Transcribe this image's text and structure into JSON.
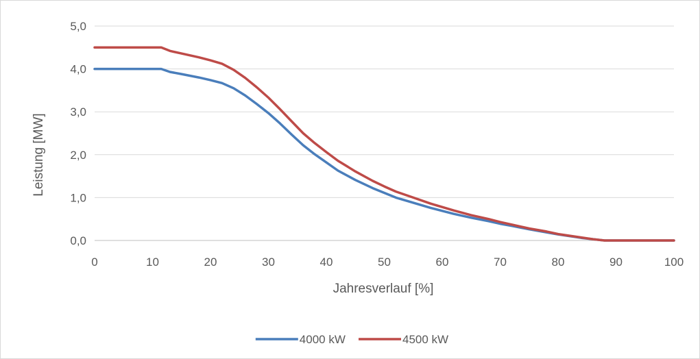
{
  "chart_data": {
    "type": "line",
    "title": "",
    "xlabel": "Jahresverlauf [%]",
    "ylabel": "Leistung [MW]",
    "xlim": [
      0,
      100
    ],
    "ylim": [
      0,
      5
    ],
    "x_ticks": [
      0,
      10,
      20,
      30,
      40,
      50,
      60,
      70,
      80,
      90,
      100
    ],
    "x_tick_labels": [
      "0",
      "10",
      "20",
      "30",
      "40",
      "50",
      "60",
      "70",
      "80",
      "90",
      "100"
    ],
    "y_ticks": [
      0,
      1,
      2,
      3,
      4,
      5
    ],
    "y_tick_labels": [
      "0,0",
      "1,0",
      "2,0",
      "3,0",
      "4,0",
      "5,0"
    ],
    "grid": "horizontal",
    "legend_position": "bottom",
    "series": [
      {
        "name": "4000 kW",
        "color": "#4a7ebb",
        "x": [
          0,
          5,
          10,
          11.5,
          13,
          15,
          18,
          20,
          22,
          24,
          26,
          28,
          30,
          32,
          34,
          36,
          38,
          40,
          42,
          45,
          48,
          50,
          52,
          55,
          58,
          60,
          62,
          65,
          68,
          70,
          72,
          75,
          78,
          80,
          82,
          84,
          86,
          88,
          90,
          95,
          100
        ],
        "y": [
          4.0,
          4.0,
          4.0,
          4.0,
          3.93,
          3.88,
          3.8,
          3.74,
          3.67,
          3.55,
          3.38,
          3.18,
          2.97,
          2.73,
          2.47,
          2.22,
          2.01,
          1.82,
          1.63,
          1.41,
          1.22,
          1.11,
          1.0,
          0.88,
          0.76,
          0.69,
          0.62,
          0.53,
          0.45,
          0.39,
          0.34,
          0.26,
          0.19,
          0.14,
          0.1,
          0.06,
          0.03,
          0.0,
          0.0,
          0.0,
          0.0
        ]
      },
      {
        "name": "4500 kW",
        "color": "#be4b48",
        "x": [
          0,
          5,
          10,
          11.5,
          13,
          15,
          18,
          20,
          22,
          24,
          26,
          28,
          30,
          32,
          34,
          36,
          38,
          40,
          42,
          45,
          48,
          50,
          52,
          55,
          58,
          60,
          62,
          65,
          68,
          70,
          72,
          75,
          78,
          80,
          82,
          84,
          86,
          88,
          90,
          95,
          100
        ],
        "y": [
          4.5,
          4.5,
          4.5,
          4.5,
          4.42,
          4.36,
          4.27,
          4.2,
          4.12,
          3.98,
          3.79,
          3.57,
          3.33,
          3.06,
          2.78,
          2.5,
          2.27,
          2.06,
          1.86,
          1.61,
          1.39,
          1.26,
          1.14,
          1.0,
          0.86,
          0.78,
          0.7,
          0.59,
          0.5,
          0.43,
          0.37,
          0.28,
          0.21,
          0.15,
          0.11,
          0.07,
          0.03,
          0.0,
          0.0,
          0.0,
          0.0
        ]
      }
    ]
  }
}
